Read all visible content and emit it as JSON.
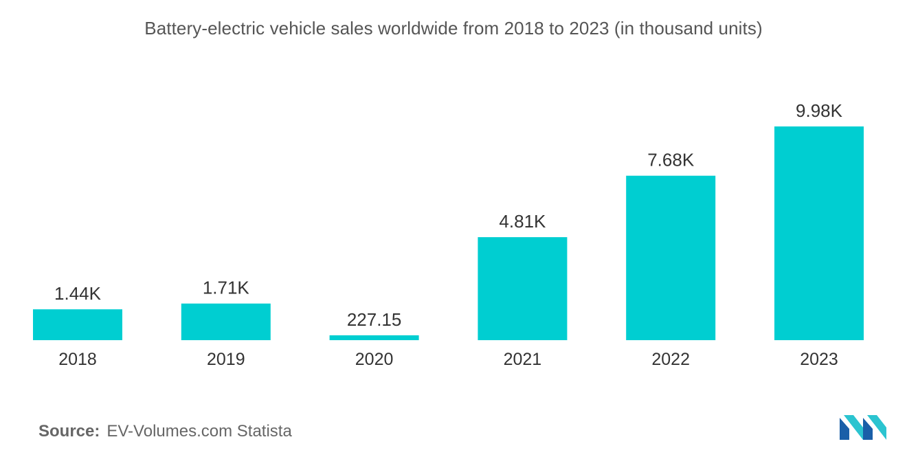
{
  "chart_data": {
    "type": "bar",
    "title": "Battery-electric vehicle sales worldwide from 2018 to 2023 (in thousand units)",
    "categories": [
      "2018",
      "2019",
      "2020",
      "2021",
      "2022",
      "2023"
    ],
    "values": [
      1440,
      1710,
      227.15,
      4810,
      7680,
      9980
    ],
    "value_labels": [
      "1.44K",
      "1.71K",
      "227.15",
      "4.81K",
      "7.68K",
      "9.98K"
    ],
    "xlabel": "",
    "ylabel": "",
    "ylim": [
      0,
      10000
    ],
    "grid": false,
    "legend": "none",
    "bar_color": "#00CED1"
  },
  "footer": {
    "source_label": "Source:",
    "source_text": "EV-Volumes.com Statista"
  },
  "logo": {
    "icon": "mordor-intelligence-logo-icon",
    "colors": [
      "#1a5fa8",
      "#2bc4d0"
    ]
  }
}
